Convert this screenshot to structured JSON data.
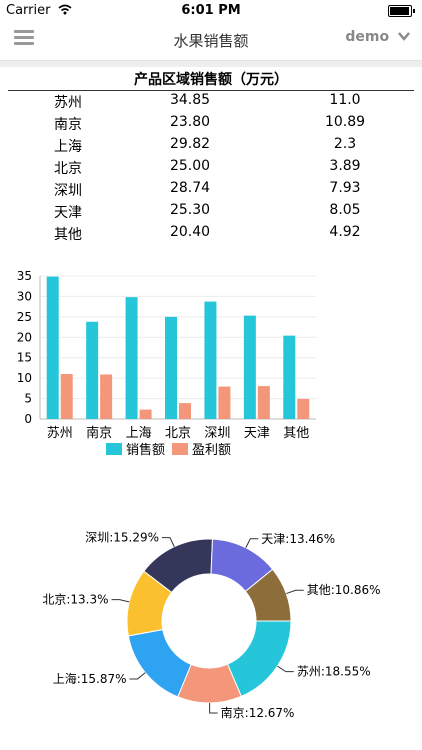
{
  "status": {
    "carrier": "Carrier",
    "time": "6:01 PM"
  },
  "nav": {
    "title": "水果销售额",
    "user": "demo"
  },
  "table": {
    "title": "产品区域销售额（万元）",
    "rows": [
      [
        "苏州",
        "34.85",
        "11.0"
      ],
      [
        "南京",
        "23.80",
        "10.89"
      ],
      [
        "上海",
        "29.82",
        "2.3"
      ],
      [
        "北京",
        "25.00",
        "3.89"
      ],
      [
        "深圳",
        "28.74",
        "7.93"
      ],
      [
        "天津",
        "25.30",
        "8.05"
      ],
      [
        "其他",
        "20.40",
        "4.92"
      ]
    ]
  },
  "chart_data": [
    {
      "type": "bar",
      "categories": [
        "苏州",
        "南京",
        "上海",
        "北京",
        "深圳",
        "天津",
        "其他"
      ],
      "series": [
        {
          "name": "销售额",
          "values": [
            34.85,
            23.8,
            29.82,
            25.0,
            28.74,
            25.3,
            20.4
          ],
          "color": "#26c6da"
        },
        {
          "name": "盈利额",
          "values": [
            11.0,
            10.89,
            2.3,
            3.89,
            7.93,
            8.05,
            4.92
          ],
          "color": "#f4967a"
        }
      ],
      "ylim": [
        0,
        35
      ],
      "yticks": [
        0,
        5,
        10,
        15,
        20,
        25,
        30,
        35
      ],
      "grid": true,
      "legend": "bottom"
    },
    {
      "type": "pie",
      "variant": "donut",
      "slices": [
        {
          "label": "苏州:18.55%",
          "value": 18.55,
          "color": "#26c6da"
        },
        {
          "label": "南京:12.67%",
          "value": 12.67,
          "color": "#f4967a"
        },
        {
          "label": "上海:15.87%",
          "value": 15.87,
          "color": "#2ea3f2"
        },
        {
          "label": "北京:13.3%",
          "value": 13.3,
          "color": "#fbc02d"
        },
        {
          "label": "深圳:15.29%",
          "value": 15.29,
          "color": "#34375a"
        },
        {
          "label": "天津:13.46%",
          "value": 13.46,
          "color": "#6b6bde"
        },
        {
          "label": "其他:10.86%",
          "value": 10.86,
          "color": "#8d6e3a"
        }
      ]
    }
  ]
}
